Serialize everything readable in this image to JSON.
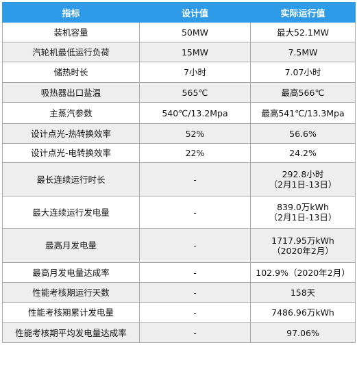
{
  "table": {
    "headers": [
      "指标",
      "设计值",
      "实际运行值"
    ],
    "rows": [
      {
        "indicator": "装机容量",
        "design": "50MW",
        "actual": "最大52.1MW"
      },
      {
        "indicator": "汽轮机最低运行负荷",
        "design": "15MW",
        "actual": "7.5MW"
      },
      {
        "indicator": "储热时长",
        "design": "7小时",
        "actual": "7.07小时"
      },
      {
        "indicator": "吸热器出口盐温",
        "design": "565℃",
        "actual": "最高566℃"
      },
      {
        "indicator": "主蒸汽参数",
        "design": "540℃/13.2Mpa",
        "actual": "最高541℃/13.3Mpa"
      },
      {
        "indicator": "设计点光-热转换效率",
        "design": "52%",
        "actual": "56.6%"
      },
      {
        "indicator": "设计点光-电转换效率",
        "design": "22%",
        "actual": "24.2%"
      },
      {
        "indicator": "最长连续运行时长",
        "design": "-",
        "actual": "292.8小时",
        "actual_line2": "（2月1日-13日）"
      },
      {
        "indicator": "最大连续运行发电量",
        "design": "-",
        "actual": "839.0万kWh",
        "actual_line2": "（2月1日-13日）"
      },
      {
        "indicator": "最高月发电量",
        "design": "-",
        "actual": "1717.95万kWh",
        "actual_line2": "（2020年2月）"
      },
      {
        "indicator": "最高月发电量达成率",
        "design": "-",
        "actual": "102.9%（2020年2月）"
      },
      {
        "indicator": "性能考核期运行天数",
        "design": "-",
        "actual": "158天"
      },
      {
        "indicator": "性能考核期累计发电量",
        "design": "-",
        "actual": "7486.96万kWh"
      },
      {
        "indicator": "性能考核期平均发电量达成率",
        "design": "-",
        "actual": "97.06%"
      }
    ]
  },
  "colors": {
    "header_bg": "#2e9be8",
    "header_text": "#ffffff",
    "alt_row_bg": "#eeeeee",
    "border": "#a8a8a8"
  }
}
